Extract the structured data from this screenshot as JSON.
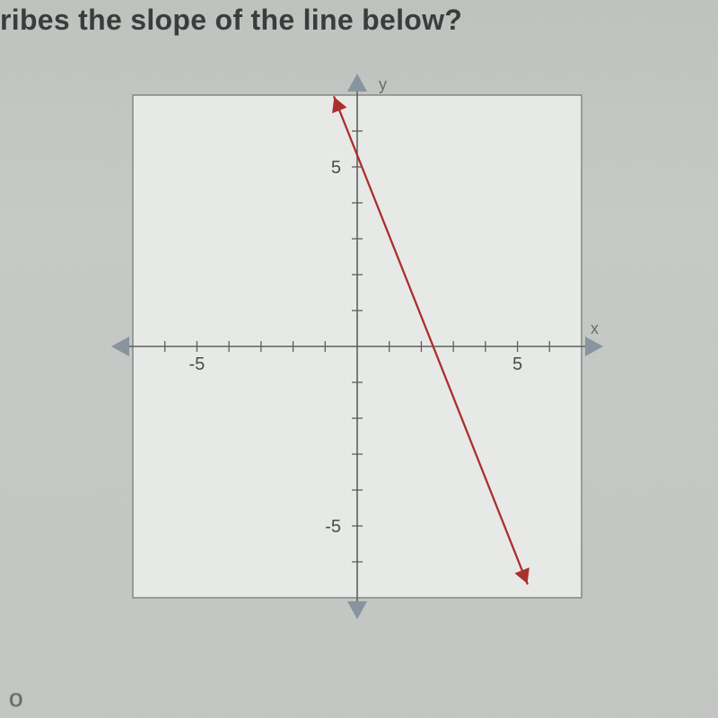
{
  "question_text": "ribes the slope of the line below?",
  "bottom_fragment": "o",
  "chart": {
    "type": "line",
    "background_color": "#d4d6d3",
    "panel_color": "#e7e9e6",
    "border_color": "#808280",
    "axis_color": "#5e605e",
    "tick_color": "#5e605e",
    "tick_label_color": "#4a4c4a",
    "axis_label_color": "#6a6c6a",
    "line_color": "#aa2f2f",
    "arrow_color": "#8894a0",
    "xlim": [
      -7,
      7
    ],
    "ylim": [
      -7,
      7
    ],
    "xtick_labels": {
      "-5": "-5",
      "5": "5"
    },
    "ytick_labels": {
      "5": "5",
      "-5": "-5"
    },
    "xlabel": "x",
    "ylabel": "y",
    "ticks": [
      -6,
      -5,
      -4,
      -3,
      -2,
      -1,
      1,
      2,
      3,
      4,
      5,
      6
    ],
    "line_points": [
      [
        -0.718,
        6.946
      ],
      [
        5.308,
        -6.608
      ]
    ],
    "line_width": 2.3,
    "label_fontsize": 20,
    "tick_label_fontsize": 20,
    "axis_label_fontsize": 18
  }
}
